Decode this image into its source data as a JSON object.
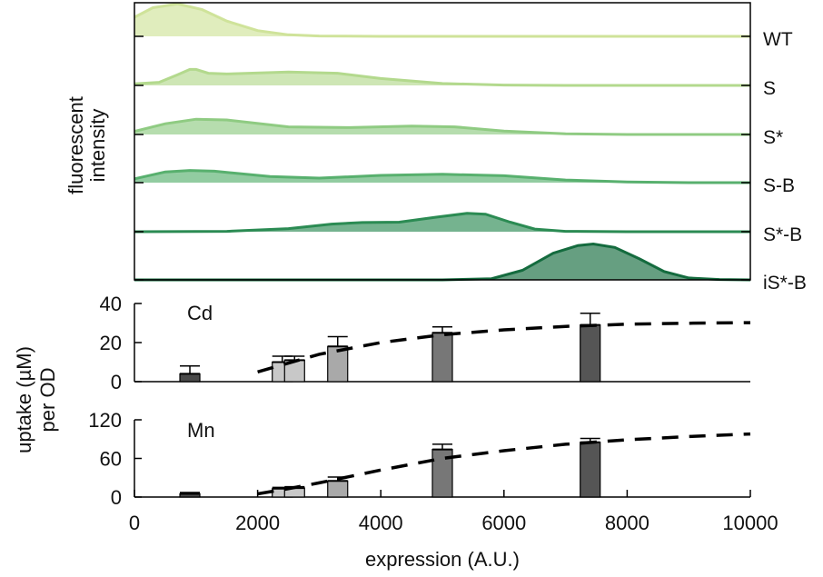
{
  "chart_data": [
    {
      "type": "area",
      "panel": "histograms",
      "ylabel": [
        "fluorescent",
        "intensity"
      ],
      "xlim": [
        0,
        10000
      ],
      "series": [
        {
          "name": "WT",
          "color": "#cfe39a",
          "points": [
            [
              0,
              0.5
            ],
            [
              300,
              0.75
            ],
            [
              700,
              0.85
            ],
            [
              1100,
              0.7
            ],
            [
              1500,
              0.4
            ],
            [
              2000,
              0.15
            ],
            [
              2500,
              0.04
            ],
            [
              3000,
              0.01
            ],
            [
              4000,
              0
            ],
            [
              10000,
              0
            ]
          ]
        },
        {
          "name": "S",
          "color": "#b3d98d",
          "points": [
            [
              0,
              0.04
            ],
            [
              400,
              0.08
            ],
            [
              700,
              0.28
            ],
            [
              900,
              0.42
            ],
            [
              1000,
              0.42
            ],
            [
              1200,
              0.32
            ],
            [
              1500,
              0.3
            ],
            [
              2500,
              0.35
            ],
            [
              3300,
              0.32
            ],
            [
              4000,
              0.18
            ],
            [
              5000,
              0.05
            ],
            [
              6000,
              0.01
            ],
            [
              7000,
              0
            ],
            [
              10000,
              0
            ]
          ]
        },
        {
          "name": "S*",
          "color": "#8fcb82",
          "points": [
            [
              0,
              0.08
            ],
            [
              500,
              0.28
            ],
            [
              1000,
              0.4
            ],
            [
              1500,
              0.38
            ],
            [
              2500,
              0.2
            ],
            [
              3500,
              0.18
            ],
            [
              4500,
              0.22
            ],
            [
              5200,
              0.2
            ],
            [
              6000,
              0.09
            ],
            [
              7000,
              0.02
            ],
            [
              8000,
              0
            ],
            [
              10000,
              0
            ]
          ]
        },
        {
          "name": "S-B",
          "color": "#58b06e",
          "points": [
            [
              0,
              0.1
            ],
            [
              500,
              0.28
            ],
            [
              900,
              0.32
            ],
            [
              1300,
              0.3
            ],
            [
              2200,
              0.16
            ],
            [
              3000,
              0.12
            ],
            [
              4000,
              0.19
            ],
            [
              5000,
              0.22
            ],
            [
              6000,
              0.18
            ],
            [
              7000,
              0.07
            ],
            [
              8000,
              0.02
            ],
            [
              9000,
              0
            ],
            [
              10000,
              0
            ]
          ]
        },
        {
          "name": "S*-B",
          "color": "#2b8b53",
          "points": [
            [
              0,
              0
            ],
            [
              1500,
              0.01
            ],
            [
              2500,
              0.08
            ],
            [
              3200,
              0.2
            ],
            [
              3700,
              0.24
            ],
            [
              4300,
              0.25
            ],
            [
              4900,
              0.38
            ],
            [
              5400,
              0.48
            ],
            [
              5700,
              0.46
            ],
            [
              6100,
              0.25
            ],
            [
              6500,
              0.07
            ],
            [
              7000,
              0.01
            ],
            [
              8000,
              0
            ],
            [
              10000,
              0
            ]
          ]
        },
        {
          "name": "iS*-B",
          "color": "#146b3e",
          "points": [
            [
              0,
              0
            ],
            [
              5000,
              0
            ],
            [
              5800,
              0.03
            ],
            [
              6300,
              0.25
            ],
            [
              6800,
              0.7
            ],
            [
              7200,
              0.9
            ],
            [
              7450,
              0.94
            ],
            [
              7800,
              0.85
            ],
            [
              8200,
              0.55
            ],
            [
              8600,
              0.22
            ],
            [
              9000,
              0.05
            ],
            [
              9500,
              0.01
            ],
            [
              10000,
              0
            ]
          ]
        }
      ]
    },
    {
      "type": "bar",
      "panel": "Cd",
      "title": "Cd",
      "ylim": [
        0,
        40
      ],
      "yticks": [
        0,
        20,
        40
      ],
      "bars": [
        {
          "x": 900,
          "value": 4,
          "err": 4,
          "fill": "#4a4a4a"
        },
        {
          "x": 2400,
          "value": 10,
          "err": 3,
          "fill": "#c8c8c8"
        },
        {
          "x": 2600,
          "value": 11,
          "err": 2,
          "fill": "#c8c8c8"
        },
        {
          "x": 3300,
          "value": 18,
          "err": 5,
          "fill": "#a9a9a9"
        },
        {
          "x": 5000,
          "value": 25,
          "err": 3,
          "fill": "#777777"
        },
        {
          "x": 7400,
          "value": 29,
          "err": 6,
          "fill": "#555555"
        }
      ],
      "fit": [
        [
          2000,
          5
        ],
        [
          3000,
          14
        ],
        [
          4000,
          20
        ],
        [
          5000,
          24
        ],
        [
          6000,
          26.5
        ],
        [
          7000,
          28.3
        ],
        [
          8000,
          29.4
        ],
        [
          9000,
          29.9
        ],
        [
          10000,
          30.2
        ]
      ]
    },
    {
      "type": "bar",
      "panel": "Mn",
      "title": "Mn",
      "ylim": [
        0,
        120
      ],
      "yticks": [
        0,
        60,
        120
      ],
      "bars": [
        {
          "x": 900,
          "value": 5,
          "err": 2,
          "fill": "#4a4a4a"
        },
        {
          "x": 2400,
          "value": 13,
          "err": 2,
          "fill": "#c8c8c8"
        },
        {
          "x": 2600,
          "value": 14,
          "err": 2,
          "fill": "#c8c8c8"
        },
        {
          "x": 3300,
          "value": 25,
          "err": 6,
          "fill": "#a9a9a9"
        },
        {
          "x": 5000,
          "value": 74,
          "err": 8,
          "fill": "#777777"
        },
        {
          "x": 7400,
          "value": 85,
          "err": 6,
          "fill": "#555555"
        }
      ],
      "fit": [
        [
          2000,
          5
        ],
        [
          2500,
          13
        ],
        [
          3000,
          22
        ],
        [
          4000,
          42
        ],
        [
          5000,
          60
        ],
        [
          6000,
          72
        ],
        [
          7000,
          82
        ],
        [
          8000,
          89
        ],
        [
          9000,
          94
        ],
        [
          10000,
          98
        ]
      ]
    }
  ],
  "shared_axis": {
    "xlabel": "expression (A.U.)",
    "xticks": [
      0,
      2000,
      4000,
      6000,
      8000,
      10000
    ],
    "ylabel_lines": [
      "uptake (µM)",
      "per OD"
    ]
  }
}
